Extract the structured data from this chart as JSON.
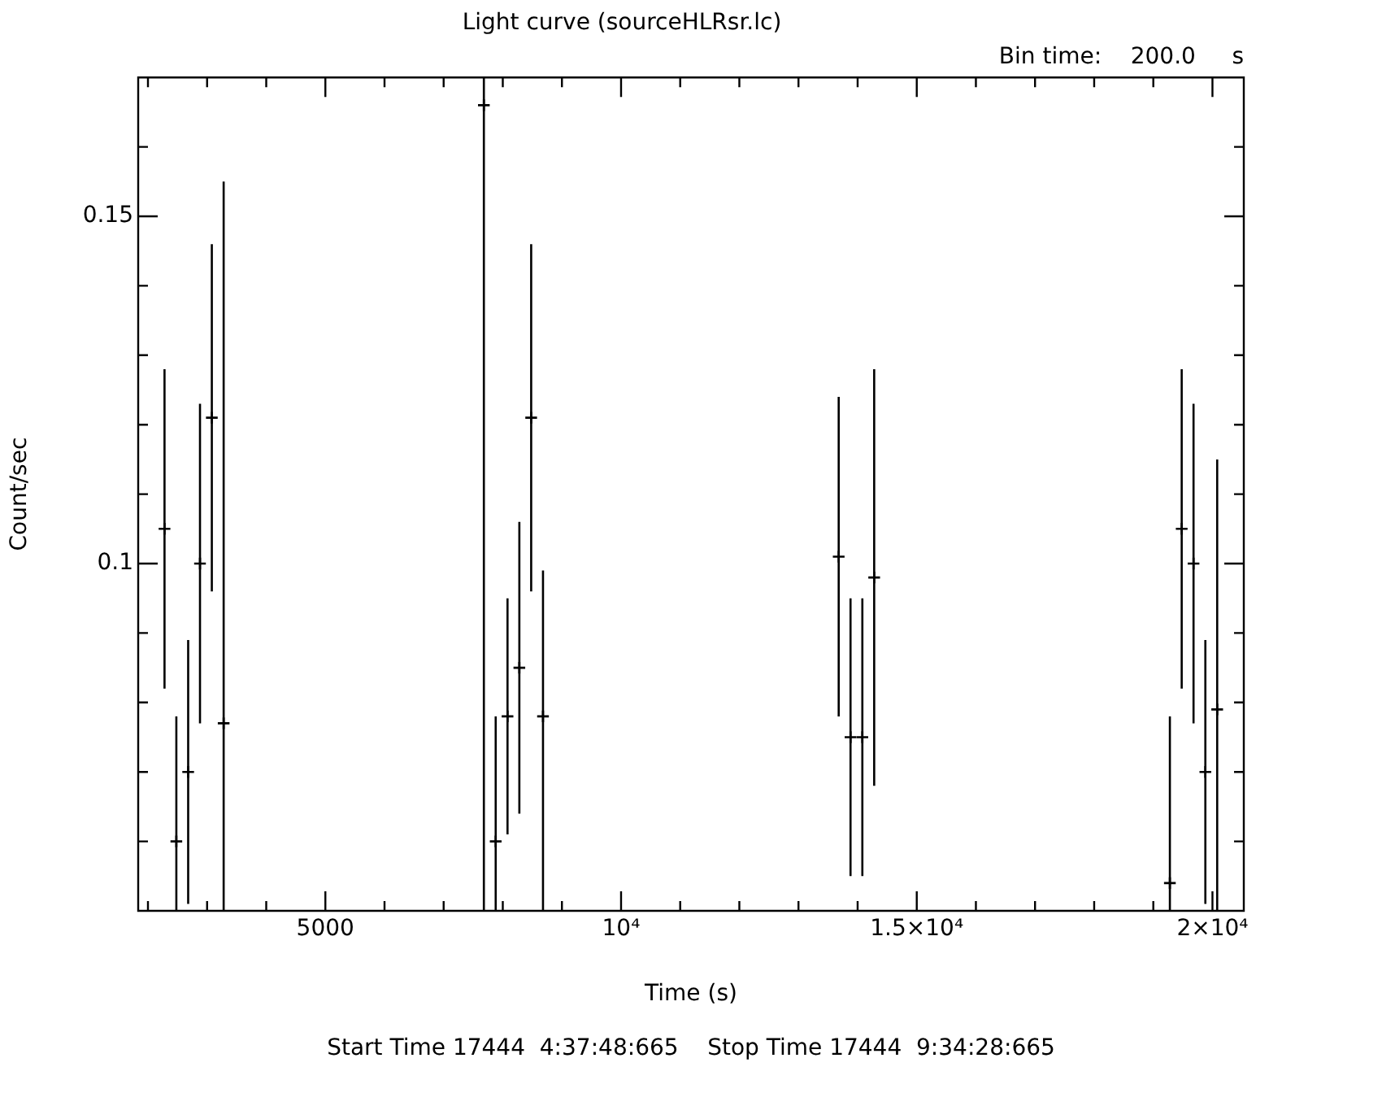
{
  "chart_data": {
    "type": "scatter",
    "title": "Light curve (sourceHLRsr.lc)",
    "subtitle": "Bin time:    200.0     s",
    "xlabel": "Time (s)",
    "ylabel": "Count/sec",
    "annotations": [
      "Start Time 17444  4:37:48:665    Stop Time 17444  9:34:28:665"
    ],
    "x": [
      2280,
      2480,
      2680,
      2880,
      3080,
      3280,
      7680,
      7880,
      8080,
      8280,
      8480,
      8680,
      13680,
      13880,
      14080,
      14280,
      19280,
      19480,
      19680,
      19880,
      20080
    ],
    "series": [
      {
        "color": "#000000",
        "values": [
          0.105,
          0.06,
          0.07,
          0.1,
          0.121,
          0.077,
          0.166,
          0.06,
          0.078,
          0.085,
          0.121,
          0.078,
          0.101,
          0.075,
          0.075,
          0.098,
          0.054,
          0.105,
          0.1,
          0.07,
          0.079
        ],
        "errors": [
          0.023,
          [
            0.05,
            0.078
          ],
          0.019,
          0.023,
          0.025,
          [
            0.05,
            0.155
          ],
          [
            0.05,
            0.17
          ],
          [
            0.05,
            0.078
          ],
          0.017,
          0.021,
          0.025,
          [
            0.05,
            0.099
          ],
          0.023,
          0.02,
          0.02,
          0.03,
          [
            0.05,
            0.078
          ],
          0.023,
          0.023,
          0.019,
          [
            0.05,
            0.115
          ]
        ]
      }
    ],
    "marker": "cross",
    "legend": false,
    "xlim": [
      1835,
      20530
    ],
    "xticks": [
      {
        "value": 2000,
        "label": null
      },
      {
        "value": 3000,
        "label": null
      },
      {
        "value": 4000,
        "label": null
      },
      5000,
      {
        "value": 6000,
        "label": null
      },
      {
        "value": 7000,
        "label": null
      },
      {
        "value": 8000,
        "label": null
      },
      {
        "value": 9000,
        "label": null
      },
      {
        "value": 10000,
        "label": "10⁴"
      },
      {
        "value": 11000,
        "label": null
      },
      {
        "value": 12000,
        "label": null
      },
      {
        "value": 13000,
        "label": null
      },
      {
        "value": 14000,
        "label": null
      },
      {
        "value": 15000,
        "label": "1.5×10⁴"
      },
      {
        "value": 16000,
        "label": null
      },
      {
        "value": 17000,
        "label": null
      },
      {
        "value": 18000,
        "label": null
      },
      {
        "value": 19000,
        "label": null
      },
      {
        "value": 20000,
        "label": "2×10⁴"
      }
    ],
    "ylim": [
      0.05,
      0.17
    ],
    "yticks": [
      {
        "value": 0.06,
        "label": null
      },
      {
        "value": 0.07,
        "label": null
      },
      {
        "value": 0.08,
        "label": null
      },
      {
        "value": 0.09,
        "label": null
      },
      0.1,
      {
        "value": 0.11,
        "label": null
      },
      {
        "value": 0.12,
        "label": null
      },
      {
        "value": 0.13,
        "label": null
      },
      {
        "value": 0.14,
        "label": null
      },
      0.15,
      {
        "value": 0.16,
        "label": null
      }
    ]
  }
}
